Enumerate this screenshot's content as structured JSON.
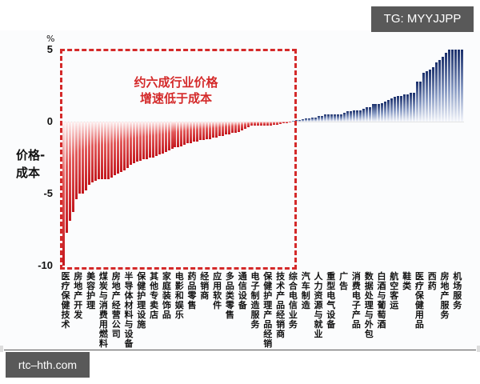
{
  "watermarks": {
    "top_right": "TG: MYYJJPP",
    "bottom_left": "rtc–hth.com"
  },
  "axis": {
    "unit": "%",
    "ylabel_line1": "价格-",
    "ylabel_line2": "成本",
    "ticks": [
      "5",
      "0",
      "-5",
      "-10"
    ]
  },
  "annotation": {
    "line1": "约六成行业价格",
    "line2": "增速低于成本"
  },
  "colors": {
    "negative": "#c3161c",
    "positive": "#1a2f6b",
    "highlight_box": "#d42a2a"
  },
  "chart_data": {
    "type": "bar",
    "title": "",
    "xlabel": "",
    "ylabel": "价格-成本 (%)",
    "ylim": [
      -10,
      5
    ],
    "yticks": [
      5,
      0,
      -5,
      -10
    ],
    "grid": false,
    "annotations": [
      "约六成行业价格增速低于成本"
    ],
    "highlight_region": "negative bars (dashed red box)",
    "labeled_categories": [
      {
        "label": "医疗保健技术",
        "index": 0
      },
      {
        "label": "房地产开发",
        "index": 3
      },
      {
        "label": "美容护理",
        "index": 7
      },
      {
        "label": "煤炭与消费用燃料",
        "index": 10
      },
      {
        "label": "房地产经营公司",
        "index": 14
      },
      {
        "label": "半导体材料与设备",
        "index": 17
      },
      {
        "label": "保健护理设施",
        "index": 21
      },
      {
        "label": "其他专卖店",
        "index": 25
      },
      {
        "label": "家庭装饰品",
        "index": 29
      },
      {
        "label": "电影和娱乐",
        "index": 32
      },
      {
        "label": "药品零售",
        "index": 36
      },
      {
        "label": "经销商",
        "index": 39
      },
      {
        "label": "应用软件",
        "index": 43
      },
      {
        "label": "多品类零售",
        "index": 46
      },
      {
        "label": "通信设备",
        "index": 50
      },
      {
        "label": "电子制造服务",
        "index": 54
      },
      {
        "label": "保健护理产品经销",
        "index": 57
      },
      {
        "label": "技术产品经销商",
        "index": 61
      },
      {
        "label": "综合电信业务",
        "index": 65
      },
      {
        "label": "汽车制造",
        "index": 72
      },
      {
        "label": "人力资源与就业",
        "index": 76
      },
      {
        "label": "重型电气设备",
        "index": 79
      },
      {
        "label": "广告",
        "index": 83
      },
      {
        "label": "消费电子产品",
        "index": 86
      },
      {
        "label": "数据处理与外包",
        "index": 90
      },
      {
        "label": "白酒与葡萄酒",
        "index": 94
      },
      {
        "label": "航空客运",
        "index": 97
      },
      {
        "label": "鞋类",
        "index": 101
      },
      {
        "label": "医疗保健用品",
        "index": 104
      },
      {
        "label": "西药",
        "index": 108
      },
      {
        "label": "房地产服务",
        "index": 112
      },
      {
        "label": "机场服务",
        "index": 116
      }
    ],
    "values": [
      -10.0,
      -7.7,
      -6.9,
      -6.3,
      -5.4,
      -5.0,
      -5.0,
      -4.8,
      -4.4,
      -4.2,
      -4.1,
      -4.0,
      -4.0,
      -4.0,
      -4.0,
      -3.9,
      -3.7,
      -3.6,
      -3.5,
      -3.4,
      -3.2,
      -3.0,
      -2.9,
      -2.8,
      -2.7,
      -2.6,
      -2.6,
      -2.5,
      -2.5,
      -2.4,
      -2.3,
      -2.2,
      -2.1,
      -2.0,
      -1.9,
      -1.8,
      -1.8,
      -1.7,
      -1.6,
      -1.5,
      -1.5,
      -1.4,
      -1.4,
      -1.3,
      -1.3,
      -1.2,
      -1.2,
      -1.1,
      -1.1,
      -1.0,
      -1.0,
      -0.9,
      -0.9,
      -0.8,
      -0.8,
      -0.7,
      -0.6,
      -0.5,
      -0.4,
      -0.3,
      -0.3,
      -0.3,
      -0.3,
      -0.3,
      -0.25,
      -0.25,
      -0.2,
      -0.2,
      -0.15,
      -0.1,
      -0.1,
      -0.05,
      0.05,
      0.1,
      0.1,
      0.15,
      0.2,
      0.25,
      0.3,
      0.3,
      0.4,
      0.4,
      0.5,
      0.5,
      0.5,
      0.5,
      0.5,
      0.5,
      0.6,
      0.7,
      0.7,
      0.8,
      0.8,
      0.8,
      0.9,
      1.0,
      1.0,
      1.2,
      1.2,
      1.2,
      1.3,
      1.4,
      1.5,
      1.6,
      1.7,
      1.8,
      1.8,
      1.9,
      1.9,
      2.0,
      2.0,
      2.8,
      2.8,
      3.4,
      3.5,
      3.6,
      3.8,
      4.1,
      4.3,
      4.5,
      4.8,
      5.0,
      5.0,
      5.0,
      5.0,
      5.0
    ]
  }
}
